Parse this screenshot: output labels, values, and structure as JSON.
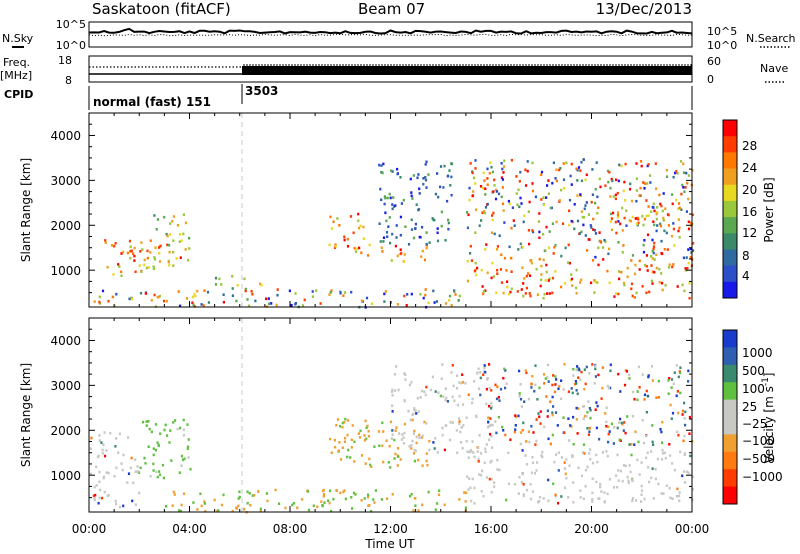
{
  "header": {
    "station": "Saskatoon (fitACF)",
    "beam": "Beam 07",
    "date": "13/Dec/2013"
  },
  "top_panels": {
    "noise": {
      "left_label": "N.Sky",
      "right_label": "N.Search",
      "left_ticks": [
        "10^5",
        "10^0"
      ],
      "right_ticks": [
        "10^5",
        "10^0"
      ]
    },
    "freq": {
      "left_label_line1": "Freq.",
      "left_label_line2": "[MHz]",
      "left_ticks": [
        "18",
        "8"
      ],
      "right_ticks": [
        "60",
        "0"
      ],
      "right_label": "Nave"
    },
    "cpid": {
      "label": "CPID",
      "segments": [
        {
          "text": "normal (fast) 151",
          "start_hour": 0
        },
        {
          "text": "3503",
          "start_hour": 6
        }
      ]
    }
  },
  "chart_data": [
    {
      "type": "heatmap",
      "title": "",
      "xlabel": "Time UT",
      "ylabel": "Slant Range [km]",
      "xlim": [
        0,
        24
      ],
      "ylim": [
        180,
        4500
      ],
      "x_ticks": [
        "00:00",
        "04:00",
        "08:00",
        "12:00",
        "16:00",
        "20:00",
        "00:00"
      ],
      "y_ticks": [
        "1000",
        "2000",
        "3000",
        "4000"
      ],
      "colorbar": {
        "label": "Power [dB]",
        "ticks": [
          "4",
          "8",
          "12",
          "16",
          "20",
          "24",
          "28"
        ],
        "range": [
          0,
          30
        ],
        "colors": [
          "#1818e8",
          "#2a4fc8",
          "#2f6aa0",
          "#3a8a6a",
          "#5aa850",
          "#9ac83c",
          "#e8d820",
          "#f0a020",
          "#ff7800",
          "#ff3c00",
          "#ff0000"
        ]
      },
      "regions": [
        {
          "t0": 0.5,
          "t1": 2.8,
          "r0": 900,
          "r1": 1700,
          "level": "high"
        },
        {
          "t0": 1.5,
          "t1": 4.0,
          "r0": 1100,
          "r1": 1600,
          "level": "high"
        },
        {
          "t0": 2.5,
          "t1": 4.0,
          "r0": 1400,
          "r1": 2300,
          "level": "mid"
        },
        {
          "t0": 5.0,
          "t1": 7.0,
          "r0": 600,
          "r1": 900,
          "level": "mid"
        },
        {
          "t0": 0.0,
          "t1": 15.0,
          "r0": 200,
          "r1": 600,
          "level": "mixed"
        },
        {
          "t0": 9.5,
          "t1": 11.0,
          "r0": 1500,
          "r1": 2300,
          "level": "high"
        },
        {
          "t0": 10.5,
          "t1": 13.5,
          "r0": 1200,
          "r1": 1600,
          "level": "high"
        },
        {
          "t0": 11.5,
          "t1": 14.5,
          "r0": 1600,
          "r1": 3500,
          "level": "low"
        },
        {
          "t0": 15.0,
          "t1": 24.0,
          "r0": 400,
          "r1": 1300,
          "level": "high"
        },
        {
          "t0": 15.0,
          "t1": 24.0,
          "r0": 1300,
          "r1": 3500,
          "level": "mixed"
        },
        {
          "t0": 21.0,
          "t1": 24.0,
          "r0": 1900,
          "r1": 2600,
          "level": "high"
        }
      ]
    },
    {
      "type": "heatmap",
      "title": "",
      "xlabel": "Time UT",
      "ylabel": "Slant Range [km]",
      "xlim": [
        0,
        24
      ],
      "ylim": [
        180,
        4500
      ],
      "x_ticks": [
        "00:00",
        "04:00",
        "08:00",
        "12:00",
        "16:00",
        "20:00",
        "00:00"
      ],
      "y_ticks": [
        "1000",
        "2000",
        "3000",
        "4000"
      ],
      "colorbar": {
        "label": "Velocity [m s^-1]",
        "ticks": [
          "1000",
          "500",
          "100",
          "25",
          "−25",
          "−100",
          "−500",
          "−1000"
        ],
        "colors": [
          "#1a3ccc",
          "#2f5fb0",
          "#3a8a70",
          "#5fc040",
          "#c8c8c4",
          "#c8c8c4",
          "#f0a030",
          "#ff7a10",
          "#ff3c00",
          "#ff0000"
        ]
      },
      "regions": [
        {
          "t0": 0.0,
          "t1": 2.0,
          "r0": 300,
          "r1": 2000,
          "level": "ground"
        },
        {
          "t0": 2.0,
          "t1": 4.0,
          "r0": 900,
          "r1": 2300,
          "level": "green"
        },
        {
          "t0": 3.0,
          "t1": 15.0,
          "r0": 200,
          "r1": 700,
          "level": "green-orange"
        },
        {
          "t0": 9.5,
          "t1": 13.5,
          "r0": 1200,
          "r1": 2300,
          "level": "orange"
        },
        {
          "t0": 12.0,
          "t1": 16.0,
          "r0": 1500,
          "r1": 3500,
          "level": "ground"
        },
        {
          "t0": 15.0,
          "t1": 24.0,
          "r0": 400,
          "r1": 1600,
          "level": "ground"
        },
        {
          "t0": 15.5,
          "t1": 24.0,
          "r0": 1700,
          "r1": 3500,
          "level": "mixed"
        }
      ]
    }
  ]
}
